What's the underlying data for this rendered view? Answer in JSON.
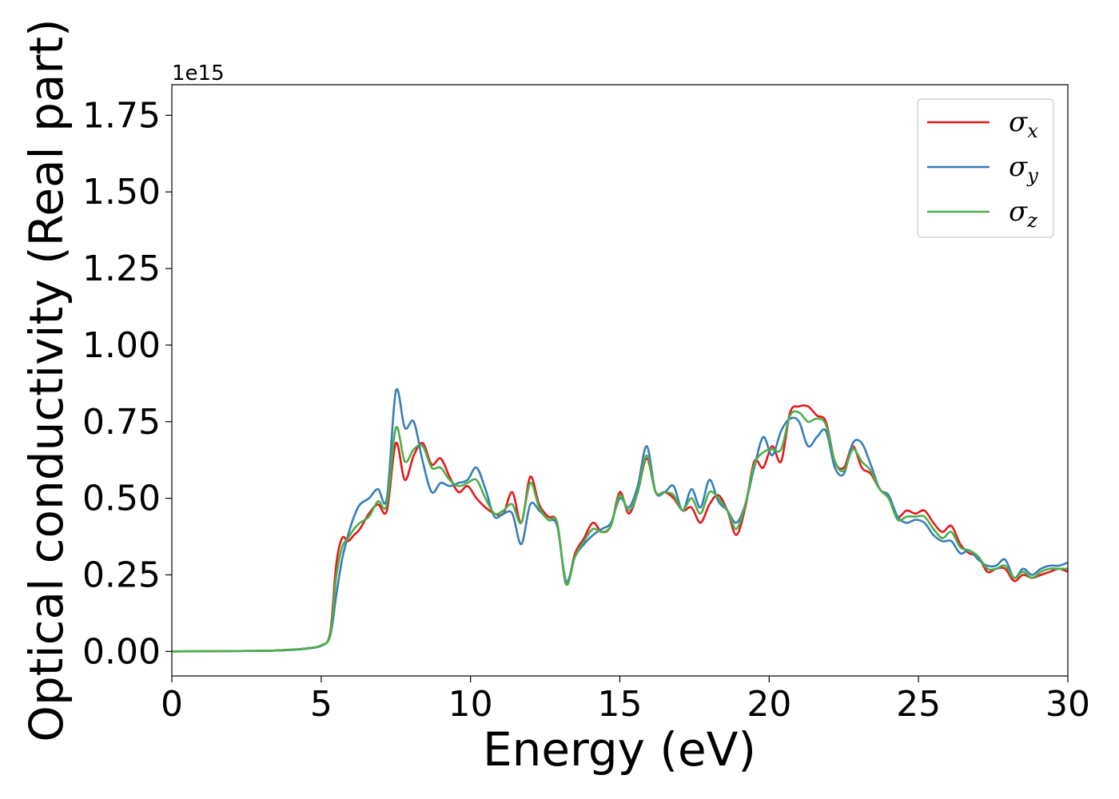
{
  "chart_data": {
    "type": "line",
    "xlabel": "Energy (eV)",
    "ylabel": "Optical conductivity (Real part)",
    "y_offset_text": "1e15",
    "xlim": [
      0,
      30
    ],
    "ylim": [
      -0.08,
      1.85
    ],
    "x_ticks": [
      0,
      5,
      10,
      15,
      20,
      25,
      30
    ],
    "x_tick_labels": [
      "0",
      "5",
      "10",
      "15",
      "20",
      "25",
      "30"
    ],
    "y_ticks": [
      0,
      0.25,
      0.5,
      0.75,
      1.0,
      1.25,
      1.5,
      1.75
    ],
    "y_tick_labels": [
      "0.00",
      "0.25",
      "0.50",
      "0.75",
      "1.00",
      "1.25",
      "1.50",
      "1.75"
    ],
    "grid": false,
    "legend_position": "top-right",
    "series": [
      {
        "name": "σx",
        "legend_symbol": "σ",
        "legend_sub": "x",
        "color": "#e41a1c",
        "x": [
          0,
          3,
          4,
          4.5,
          5,
          5.3,
          5.5,
          5.7,
          5.9,
          6.1,
          6.3,
          6.6,
          6.9,
          7.2,
          7.5,
          7.8,
          8.1,
          8.4,
          8.7,
          9.0,
          9.3,
          9.6,
          9.9,
          10.2,
          10.5,
          10.8,
          11.1,
          11.4,
          11.7,
          12.0,
          12.3,
          12.6,
          12.9,
          13.2,
          13.5,
          13.8,
          14.1,
          14.4,
          14.7,
          15.0,
          15.3,
          15.6,
          15.9,
          16.2,
          16.5,
          16.8,
          17.1,
          17.4,
          17.7,
          18.0,
          18.3,
          18.6,
          18.9,
          19.2,
          19.5,
          19.8,
          20.1,
          20.4,
          20.7,
          21.0,
          21.3,
          21.6,
          21.9,
          22.2,
          22.5,
          22.8,
          23.1,
          23.4,
          23.7,
          24.0,
          24.3,
          24.6,
          24.9,
          25.2,
          25.5,
          25.8,
          26.1,
          26.4,
          26.7,
          27.0,
          27.3,
          27.6,
          27.9,
          28.2,
          28.5,
          28.8,
          29.1,
          29.4,
          29.7,
          30.0
        ],
        "y": [
          0,
          0.002,
          0.006,
          0.01,
          0.02,
          0.06,
          0.28,
          0.37,
          0.36,
          0.38,
          0.4,
          0.45,
          0.48,
          0.46,
          0.68,
          0.56,
          0.64,
          0.68,
          0.61,
          0.63,
          0.57,
          0.52,
          0.54,
          0.5,
          0.47,
          0.45,
          0.45,
          0.52,
          0.42,
          0.57,
          0.48,
          0.44,
          0.42,
          0.22,
          0.32,
          0.37,
          0.42,
          0.39,
          0.41,
          0.52,
          0.45,
          0.52,
          0.63,
          0.52,
          0.52,
          0.5,
          0.46,
          0.47,
          0.42,
          0.48,
          0.51,
          0.46,
          0.38,
          0.47,
          0.62,
          0.6,
          0.67,
          0.62,
          0.78,
          0.8,
          0.8,
          0.77,
          0.75,
          0.62,
          0.6,
          0.67,
          0.6,
          0.58,
          0.53,
          0.5,
          0.44,
          0.46,
          0.45,
          0.46,
          0.42,
          0.39,
          0.41,
          0.35,
          0.32,
          0.31,
          0.26,
          0.27,
          0.27,
          0.23,
          0.25,
          0.24,
          0.25,
          0.26,
          0.27,
          0.26
        ]
      },
      {
        "name": "σy",
        "legend_symbol": "σ",
        "legend_sub": "y",
        "color": "#377eb8",
        "x": [
          0,
          3,
          4,
          4.5,
          5,
          5.3,
          5.5,
          5.7,
          5.9,
          6.1,
          6.3,
          6.6,
          6.9,
          7.2,
          7.5,
          7.8,
          8.1,
          8.4,
          8.7,
          9.0,
          9.3,
          9.6,
          9.9,
          10.2,
          10.5,
          10.8,
          11.1,
          11.4,
          11.7,
          12.0,
          12.3,
          12.6,
          12.9,
          13.2,
          13.5,
          13.8,
          14.1,
          14.4,
          14.7,
          15.0,
          15.3,
          15.6,
          15.9,
          16.2,
          16.5,
          16.8,
          17.1,
          17.4,
          17.7,
          18.0,
          18.3,
          18.6,
          18.9,
          19.2,
          19.5,
          19.8,
          20.1,
          20.4,
          20.7,
          21.0,
          21.3,
          21.6,
          21.9,
          22.2,
          22.5,
          22.8,
          23.1,
          23.4,
          23.7,
          24.0,
          24.3,
          24.6,
          24.9,
          25.2,
          25.5,
          25.8,
          26.1,
          26.4,
          26.7,
          27.0,
          27.3,
          27.6,
          27.9,
          28.2,
          28.5,
          28.8,
          29.1,
          29.4,
          29.7,
          30.0
        ],
        "y": [
          0,
          0.002,
          0.005,
          0.009,
          0.018,
          0.05,
          0.18,
          0.3,
          0.38,
          0.44,
          0.48,
          0.5,
          0.53,
          0.5,
          0.85,
          0.73,
          0.75,
          0.62,
          0.52,
          0.55,
          0.54,
          0.55,
          0.56,
          0.6,
          0.53,
          0.44,
          0.45,
          0.45,
          0.35,
          0.48,
          0.46,
          0.43,
          0.41,
          0.23,
          0.31,
          0.35,
          0.38,
          0.4,
          0.42,
          0.5,
          0.47,
          0.54,
          0.67,
          0.52,
          0.52,
          0.54,
          0.46,
          0.53,
          0.47,
          0.56,
          0.49,
          0.46,
          0.42,
          0.48,
          0.6,
          0.7,
          0.64,
          0.72,
          0.76,
          0.75,
          0.67,
          0.7,
          0.72,
          0.6,
          0.58,
          0.68,
          0.68,
          0.61,
          0.53,
          0.51,
          0.44,
          0.42,
          0.43,
          0.42,
          0.38,
          0.36,
          0.36,
          0.32,
          0.33,
          0.3,
          0.28,
          0.28,
          0.3,
          0.24,
          0.27,
          0.25,
          0.27,
          0.28,
          0.28,
          0.29
        ]
      },
      {
        "name": "σz",
        "legend_symbol": "σ",
        "legend_sub": "z",
        "color": "#4daf4a",
        "x": [
          0,
          3,
          4,
          4.5,
          5,
          5.3,
          5.5,
          5.7,
          5.9,
          6.1,
          6.3,
          6.6,
          6.9,
          7.2,
          7.5,
          7.8,
          8.1,
          8.4,
          8.7,
          9.0,
          9.3,
          9.6,
          9.9,
          10.2,
          10.5,
          10.8,
          11.1,
          11.4,
          11.7,
          12.0,
          12.3,
          12.6,
          12.9,
          13.2,
          13.5,
          13.8,
          14.1,
          14.4,
          14.7,
          15.0,
          15.3,
          15.6,
          15.9,
          16.2,
          16.5,
          16.8,
          17.1,
          17.4,
          17.7,
          18.0,
          18.3,
          18.6,
          18.9,
          19.2,
          19.5,
          19.8,
          20.1,
          20.4,
          20.7,
          21.0,
          21.3,
          21.6,
          21.9,
          22.2,
          22.5,
          22.8,
          23.1,
          23.4,
          23.7,
          24.0,
          24.3,
          24.6,
          24.9,
          25.2,
          25.5,
          25.8,
          26.1,
          26.4,
          26.7,
          27.0,
          27.3,
          27.6,
          27.9,
          28.2,
          28.5,
          28.8,
          29.1,
          29.4,
          29.7,
          30.0
        ],
        "y": [
          0,
          0.002,
          0.006,
          0.01,
          0.02,
          0.055,
          0.24,
          0.34,
          0.37,
          0.4,
          0.42,
          0.44,
          0.49,
          0.48,
          0.73,
          0.62,
          0.66,
          0.67,
          0.6,
          0.6,
          0.56,
          0.54,
          0.55,
          0.56,
          0.5,
          0.45,
          0.46,
          0.48,
          0.42,
          0.55,
          0.47,
          0.43,
          0.42,
          0.22,
          0.31,
          0.36,
          0.4,
          0.39,
          0.41,
          0.51,
          0.46,
          0.52,
          0.64,
          0.52,
          0.52,
          0.51,
          0.46,
          0.5,
          0.45,
          0.52,
          0.5,
          0.46,
          0.4,
          0.48,
          0.61,
          0.65,
          0.66,
          0.66,
          0.77,
          0.78,
          0.75,
          0.76,
          0.74,
          0.62,
          0.59,
          0.66,
          0.62,
          0.59,
          0.53,
          0.5,
          0.43,
          0.44,
          0.44,
          0.44,
          0.4,
          0.37,
          0.39,
          0.34,
          0.33,
          0.31,
          0.27,
          0.27,
          0.28,
          0.24,
          0.26,
          0.24,
          0.26,
          0.27,
          0.27,
          0.27
        ]
      }
    ]
  }
}
